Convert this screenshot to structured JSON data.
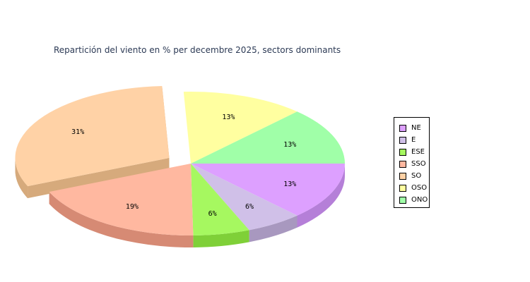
{
  "chart_data": {
    "type": "pie",
    "title": "Repartición del viento en % per decembre 2025, sectors dominants",
    "slices": [
      {
        "name": "NE",
        "value": 13,
        "label": "13%",
        "color": "#dda0ff",
        "side": "#b57fd8",
        "explode": false
      },
      {
        "name": "E",
        "value": 6,
        "label": "6%",
        "color": "#d0c0e8",
        "side": "#a898bf",
        "explode": false
      },
      {
        "name": "ESE",
        "value": 6,
        "label": "6%",
        "color": "#a6f860",
        "side": "#7fd038",
        "explode": false
      },
      {
        "name": "SSO",
        "value": 19,
        "label": "19%",
        "color": "#ffb8a0",
        "side": "#d68a74",
        "explode": false
      },
      {
        "name": "SO",
        "value": 31,
        "label": "31%",
        "color": "#ffd2a6",
        "side": "#d6aa7c",
        "explode": true
      },
      {
        "name": "OSO",
        "value": 13,
        "label": "13%",
        "color": "#ffffa0",
        "side": "#d6d67a",
        "explode": false
      },
      {
        "name": "ONO",
        "value": 13,
        "label": "13%",
        "color": "#a0ffa8",
        "side": "#78d680",
        "explode": false
      }
    ],
    "legend_position": "right",
    "three_d": true
  }
}
